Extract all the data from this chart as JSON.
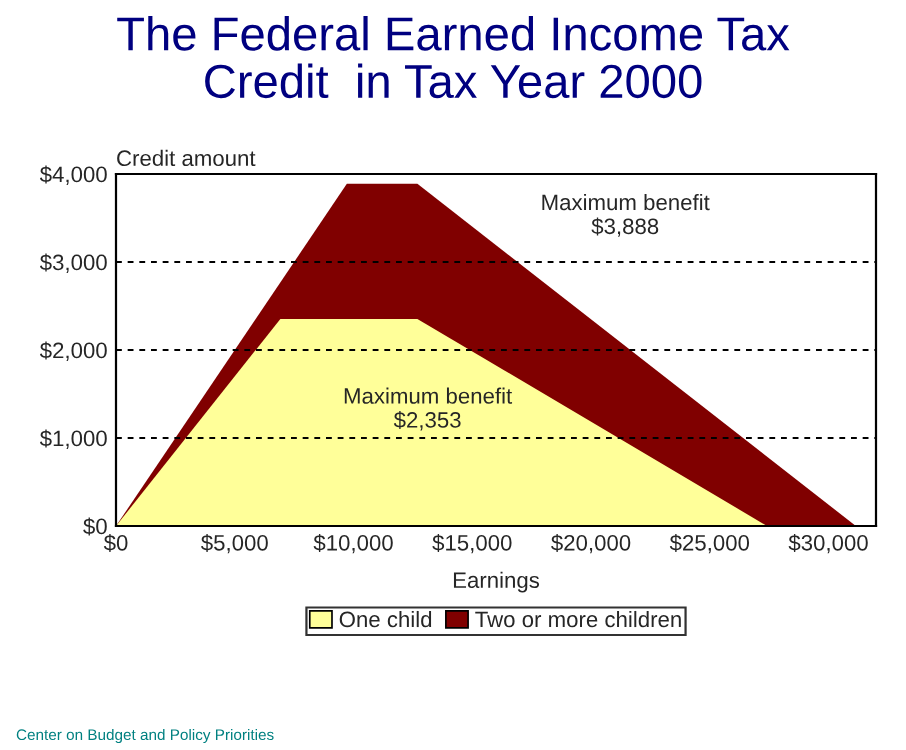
{
  "chart_data": {
    "type": "area",
    "title": "The Federal Earned Income Tax\nCredit  in Tax Year 2000",
    "xlabel": "Earnings",
    "ylabel": "Credit amount",
    "series": [
      {
        "name": "Two or more children",
        "color": "#800000",
        "x": [
          0,
          9720,
          12690,
          31152
        ],
        "values": [
          0,
          3888,
          3888,
          0
        ]
      },
      {
        "name": "One child",
        "color": "#ffff99",
        "x": [
          0,
          6920,
          12690,
          27413
        ],
        "values": [
          0,
          2353,
          2353,
          0
        ]
      }
    ],
    "xlim": [
      0,
      32000
    ],
    "ylim": [
      0,
      4000
    ],
    "xticks": [
      {
        "value": 0,
        "label": "$0"
      },
      {
        "value": 5000,
        "label": "$5,000"
      },
      {
        "value": 10000,
        "label": "$10,000"
      },
      {
        "value": 15000,
        "label": "$15,000"
      },
      {
        "value": 20000,
        "label": "$20,000"
      },
      {
        "value": 25000,
        "label": "$25,000"
      },
      {
        "value": 30000,
        "label": "$30,000"
      }
    ],
    "yticks": [
      {
        "value": 0,
        "label": "$0"
      },
      {
        "value": 1000,
        "label": "$1,000"
      },
      {
        "value": 2000,
        "label": "$2,000"
      },
      {
        "value": 3000,
        "label": "$3,000"
      },
      {
        "value": 4000,
        "label": "$4,000"
      }
    ],
    "grid": "y",
    "legend": "bottom",
    "annotations": [
      "Maximum benefit\n$3,888",
      "Maximum benefit\n$2,353",
      "Center on Budget and Policy Priorities"
    ]
  }
}
